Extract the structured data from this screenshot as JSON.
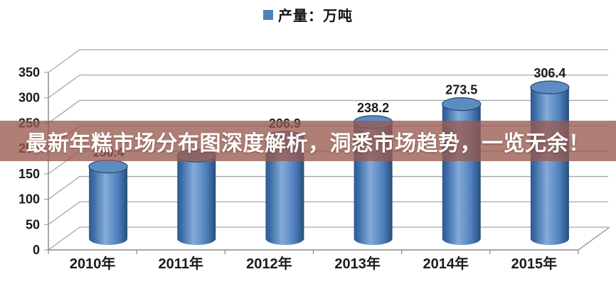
{
  "legend": {
    "label": "产量：万吨",
    "swatch_color": "#4f81bd"
  },
  "overlay_banner": {
    "text": "最新年糕市场分布图深度解析，洞悉市场趋势，一览无余！",
    "bg_color": "rgba(153,90,80,0.78)",
    "text_color": "#ffffff"
  },
  "chart_data": {
    "type": "bar",
    "style": "3d-cylinder",
    "title": "",
    "series_name": "产量：万吨",
    "categories": [
      "2010年",
      "2011年",
      "2012年",
      "2013年",
      "2014年",
      "2015年"
    ],
    "values": [
      150.4,
      172,
      206.9,
      238.2,
      273.5,
      306.4
    ],
    "data_labels": [
      "150.4",
      "",
      "206.9",
      "238.2",
      "273.5",
      "306.4"
    ],
    "y_ticks": [
      0,
      50,
      100,
      150,
      200,
      250,
      300,
      350
    ],
    "ylim": [
      0,
      350
    ],
    "xlabel": "",
    "ylabel": "",
    "grid": true,
    "legend_position": "top",
    "colors": {
      "bar_main": "#4f81bd",
      "bar_edge_dark": "#2e5a8f",
      "bar_edge_darker": "#274e79",
      "bar_highlight": "#85abd8",
      "bar_top_fill": "#5d8cc2",
      "bar_top_rim": "#24486e",
      "gridline": "#a6a6a6",
      "axis": "#8c8c8c",
      "tick_text": "#1a1a1a",
      "data_label_text": "#1a1a1a"
    }
  }
}
